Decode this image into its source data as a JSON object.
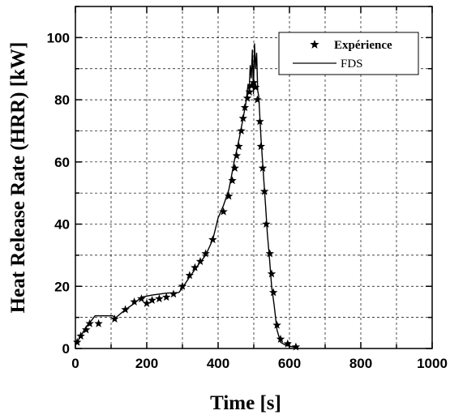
{
  "chart_data": {
    "type": "line",
    "title": "",
    "xlabel": "Time [s]",
    "ylabel": "Heat Release Rate (HRR) [kW]",
    "xlim": [
      0,
      1000
    ],
    "ylim": [
      0,
      110
    ],
    "x_ticks": [
      0,
      200,
      400,
      600,
      800,
      1000
    ],
    "y_ticks": [
      0,
      20,
      40,
      60,
      80,
      100
    ],
    "grid": true,
    "legend_position": "top-right",
    "series": [
      {
        "name": "Expérience",
        "style": "markers",
        "marker": "star",
        "color": "#000000",
        "points": [
          [
            5,
            2
          ],
          [
            15,
            4
          ],
          [
            30,
            6
          ],
          [
            40,
            8
          ],
          [
            65,
            8
          ],
          [
            110,
            9.5
          ],
          [
            140,
            12.5
          ],
          [
            165,
            15
          ],
          [
            185,
            16
          ],
          [
            200,
            14.5
          ],
          [
            215,
            15.5
          ],
          [
            235,
            16
          ],
          [
            255,
            16.5
          ],
          [
            275,
            17.5
          ],
          [
            300,
            20
          ],
          [
            320,
            23.5
          ],
          [
            335,
            26
          ],
          [
            350,
            28
          ],
          [
            365,
            30.5
          ],
          [
            385,
            35
          ],
          [
            415,
            44
          ],
          [
            430,
            49
          ],
          [
            440,
            54
          ],
          [
            447,
            58
          ],
          [
            452,
            62
          ],
          [
            458,
            65
          ],
          [
            465,
            70
          ],
          [
            470,
            74
          ],
          [
            475,
            77.5
          ],
          [
            482,
            80.5
          ],
          [
            488,
            82.5
          ],
          [
            494,
            84.5
          ],
          [
            500,
            85.5
          ],
          [
            505,
            84
          ],
          [
            510,
            80
          ],
          [
            517,
            73
          ],
          [
            520,
            65
          ],
          [
            525,
            58
          ],
          [
            530,
            50.5
          ],
          [
            535,
            40
          ],
          [
            545,
            30.5
          ],
          [
            550,
            24
          ],
          [
            555,
            18
          ],
          [
            565,
            7.5
          ],
          [
            575,
            3
          ],
          [
            595,
            1.5
          ],
          [
            618,
            0.5
          ]
        ]
      },
      {
        "name": "FDS",
        "style": "line",
        "color": "#000000",
        "points": [
          [
            0,
            1
          ],
          [
            15,
            4
          ],
          [
            30,
            7
          ],
          [
            45,
            9
          ],
          [
            55,
            10.5
          ],
          [
            105,
            10.5
          ],
          [
            112,
            9.8
          ],
          [
            140,
            12.5
          ],
          [
            165,
            14.5
          ],
          [
            185,
            16.5
          ],
          [
            215,
            17.2
          ],
          [
            255,
            17.8
          ],
          [
            290,
            18
          ],
          [
            300,
            19.5
          ],
          [
            320,
            23
          ],
          [
            345,
            27
          ],
          [
            365,
            30
          ],
          [
            385,
            35
          ],
          [
            400,
            42
          ],
          [
            415,
            46
          ],
          [
            430,
            51
          ],
          [
            445,
            60
          ],
          [
            460,
            68
          ],
          [
            470,
            74
          ],
          [
            478,
            79
          ],
          [
            484,
            85
          ],
          [
            487,
            83
          ],
          [
            490,
            91
          ],
          [
            493,
            87
          ],
          [
            496,
            96
          ],
          [
            499,
            82
          ],
          [
            502,
            98
          ],
          [
            505,
            90
          ],
          [
            508,
            95
          ],
          [
            511,
            83
          ],
          [
            514,
            81
          ],
          [
            520,
            68
          ],
          [
            527,
            56
          ],
          [
            533,
            46
          ],
          [
            538,
            37
          ],
          [
            544,
            29
          ],
          [
            550,
            20
          ],
          [
            557,
            14
          ],
          [
            565,
            6
          ],
          [
            575,
            2
          ],
          [
            590,
            1
          ],
          [
            610,
            0.5
          ],
          [
            625,
            0.2
          ]
        ]
      }
    ]
  }
}
